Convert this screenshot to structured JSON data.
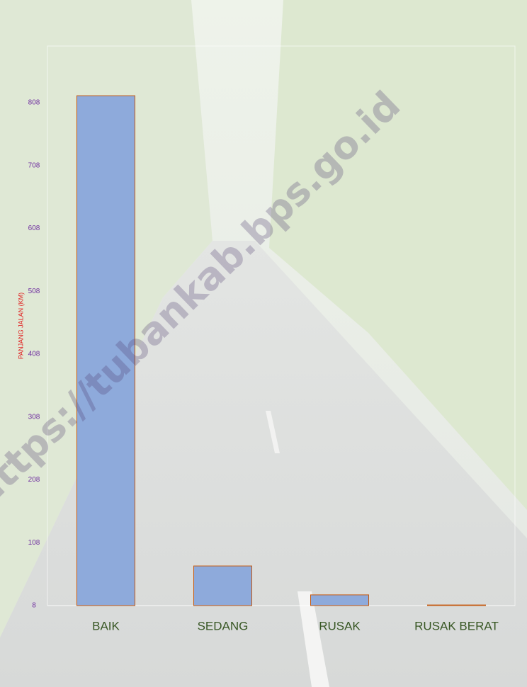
{
  "chart_data": {
    "type": "bar",
    "y_axis_label": "PANJANG JALAN (KM)",
    "categories": [
      "BAIK",
      "SEDANG",
      "RUSAK",
      "RUSAK BERAT"
    ],
    "values": [
      819,
      71,
      25,
      9
    ],
    "color": "#8eaadb",
    "edge_color": "#c55a11",
    "ylim": [
      8,
      898
    ],
    "yticks": [
      8,
      108,
      208,
      308,
      408,
      508,
      608,
      708,
      808
    ],
    "grid": false
  },
  "watermark": "https://tubankab.bps.go.id"
}
